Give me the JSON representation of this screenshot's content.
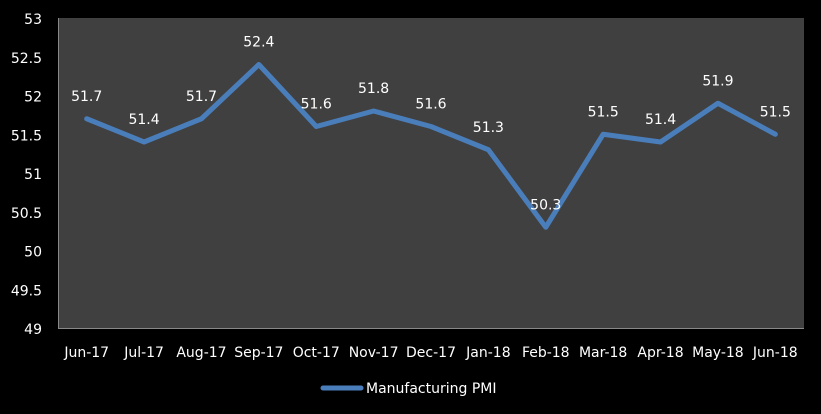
{
  "chart_data": {
    "type": "line",
    "title": "",
    "xlabel": "",
    "ylabel": "",
    "categories": [
      "Jun-17",
      "Jul-17",
      "Aug-17",
      "Sep-17",
      "Oct-17",
      "Nov-17",
      "Dec-17",
      "Jan-18",
      "Feb-18",
      "Mar-18",
      "Apr-18",
      "May-18",
      "Jun-18"
    ],
    "series": [
      {
        "name": "Manufacturing PMI",
        "values": [
          51.7,
          51.4,
          51.7,
          52.4,
          51.6,
          51.8,
          51.6,
          51.3,
          50.3,
          51.5,
          51.4,
          51.9,
          51.5
        ],
        "color": "#4a7ebb"
      }
    ],
    "ylim": [
      49,
      53
    ],
    "yticks": [
      "49",
      "49.5",
      "50",
      "50.5",
      "51",
      "51.5",
      "52",
      "52.5",
      "53"
    ],
    "grid": false,
    "data_labels": true,
    "legend": "bottom-center",
    "plot_background": "#404040",
    "background": "#000000"
  }
}
